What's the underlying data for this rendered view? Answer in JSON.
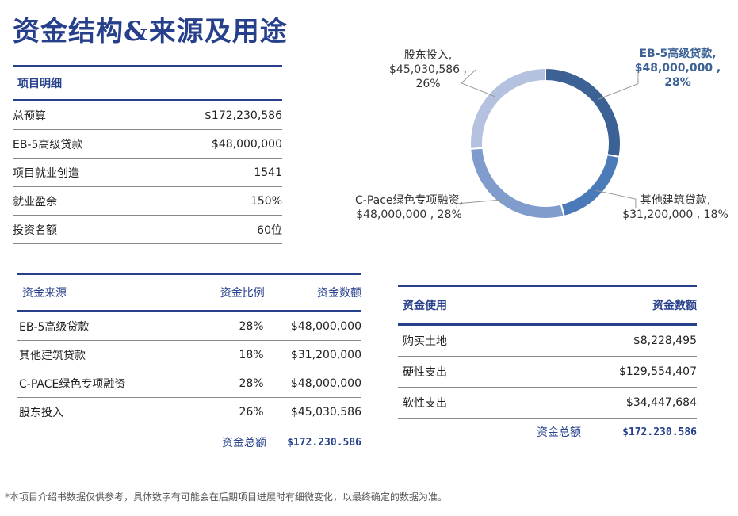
{
  "title": "资金结构&来源及用途",
  "details": {
    "header": "项目明细",
    "rows": [
      {
        "label": "总预算",
        "value": "$172,230,586"
      },
      {
        "label": "EB-5高级贷款",
        "value": "$48,000,000"
      },
      {
        "label": "项目就业创造",
        "value": "1541"
      },
      {
        "label": "就业盈余",
        "value": "150%"
      },
      {
        "label": "投资名额",
        "value": "60位"
      }
    ]
  },
  "sources": {
    "headers": [
      "资金来源",
      "资金比例",
      "资金数额"
    ],
    "rows": [
      [
        "EB-5高级贷款",
        "28%",
        "$48,000,000"
      ],
      [
        "其他建筑贷款",
        "18%",
        "$31,200,000"
      ],
      [
        "C-PACE绿色专项融资",
        "28%",
        "$48,000,000"
      ],
      [
        "股东投入",
        "26%",
        "$45,030,586"
      ]
    ],
    "total_label": "资金总额",
    "total_value": "$172.230.586"
  },
  "uses": {
    "headers": [
      "资金使用",
      "资金数额"
    ],
    "rows": [
      [
        "购买土地",
        "$8,228,495"
      ],
      [
        "硬性支出",
        "$129,554,407"
      ],
      [
        "软性支出",
        "$34,447,684"
      ]
    ],
    "total_label": "资金总额",
    "total_value": "$172.230.586"
  },
  "chart_data": {
    "type": "pie",
    "donut": true,
    "slices": [
      {
        "name": "EB-5高级贷款",
        "value": 48000000,
        "percent": 28,
        "color": "#3b6195",
        "label": [
          "EB-5高级贷款,",
          "$48,000,000 ,",
          "28%"
        ]
      },
      {
        "name": "其他建筑贷款",
        "value": 31200000,
        "percent": 18,
        "color": "#4a7ab8",
        "label": [
          "其他建筑贷款,",
          "$31,200,000 , 18%"
        ]
      },
      {
        "name": "C-Pace绿色专项融资",
        "value": 48000000,
        "percent": 28,
        "color": "#7f9ccc",
        "label": [
          "C-Pace绿色专项融资,",
          "$48,000,000 , 28%"
        ]
      },
      {
        "name": "股东投入",
        "value": 45030586,
        "percent": 26,
        "color": "#b4c2df",
        "label": [
          "股东投入,",
          "$45,030,586 ,",
          "26%"
        ]
      }
    ]
  },
  "footnote": "*本项目介绍书数据仅供参考，具体数字有可能会在后期项目进展时有细微变化，以最终确定的数据为准。"
}
